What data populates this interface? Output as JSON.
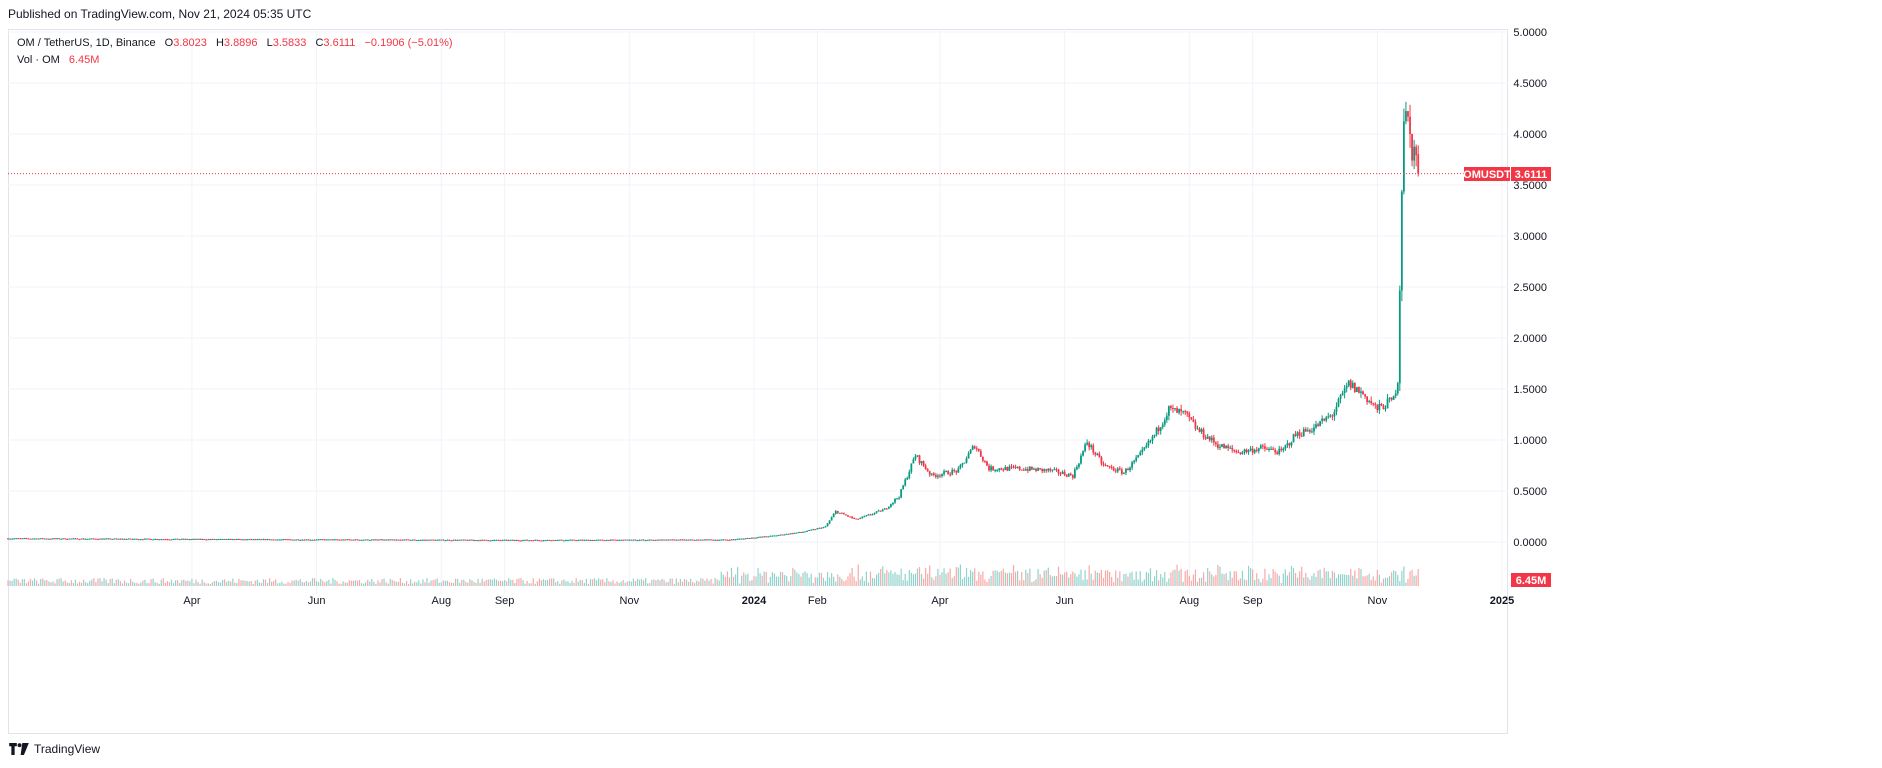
{
  "header": {
    "published": "Published on TradingView.com, Nov 21, 2024 05:35 UTC"
  },
  "legend": {
    "symbol": "OM / TetherUS, 1D, Binance",
    "open_label": "O",
    "open": "3.8023",
    "high_label": "H",
    "high": "3.8896",
    "low_label": "L",
    "low": "3.5833",
    "close_label": "C",
    "close": "3.6111",
    "change": "−0.1906 (−5.01%)",
    "volume_label": "Vol · OM",
    "volume": "6.45M"
  },
  "price_badge": {
    "ticker": "OMUSDT",
    "price": "3.6111"
  },
  "volume_badge": "6.45M",
  "footer": {
    "brand": "TradingView"
  },
  "colors": {
    "up": "#089981",
    "down": "#f23645",
    "grid": "#f0f3fa",
    "up_vol": "#92d2cc",
    "down_vol": "#f7a9a7"
  },
  "chart_data": {
    "type": "candlestick",
    "symbol": "OMUSDT",
    "ylim": [
      -0.4,
      5.0
    ],
    "y_ticks": [
      "5.0000",
      "4.5000",
      "4.0000",
      "3.5000",
      "3.0000",
      "2.5000",
      "2.0000",
      "1.5000",
      "1.0000",
      "0.5000",
      "0.0000"
    ],
    "x_ticks": [
      "Apr",
      "Jun",
      "Aug",
      "Sep",
      "Nov",
      "2024",
      "Feb",
      "Apr",
      "Jun",
      "Aug",
      "Sep",
      "Nov",
      "2025"
    ],
    "last_price": 3.6111,
    "last_volume": "6.45M",
    "price_path": [
      [
        "2023-01-01",
        0.035
      ],
      [
        "2023-03-01",
        0.03
      ],
      [
        "2023-05-01",
        0.025
      ],
      [
        "2023-07-01",
        0.022
      ],
      [
        "2023-09-01",
        0.018
      ],
      [
        "2023-11-01",
        0.02
      ],
      [
        "2023-12-20",
        0.022
      ],
      [
        "2024-01-10",
        0.06
      ],
      [
        "2024-01-25",
        0.1
      ],
      [
        "2024-02-05",
        0.15
      ],
      [
        "2024-02-10",
        0.3
      ],
      [
        "2024-02-20",
        0.22
      ],
      [
        "2024-03-05",
        0.32
      ],
      [
        "2024-03-12",
        0.45
      ],
      [
        "2024-03-20",
        0.85
      ],
      [
        "2024-03-28",
        0.65
      ],
      [
        "2024-04-10",
        0.7
      ],
      [
        "2024-04-18",
        0.95
      ],
      [
        "2024-04-25",
        0.72
      ],
      [
        "2024-05-10",
        0.72
      ],
      [
        "2024-05-25",
        0.7
      ],
      [
        "2024-06-05",
        0.65
      ],
      [
        "2024-06-12",
        0.98
      ],
      [
        "2024-06-20",
        0.75
      ],
      [
        "2024-06-30",
        0.68
      ],
      [
        "2024-07-08",
        0.85
      ],
      [
        "2024-07-15",
        1.05
      ],
      [
        "2024-07-22",
        1.3
      ],
      [
        "2024-07-30",
        1.25
      ],
      [
        "2024-08-05",
        1.1
      ],
      [
        "2024-08-15",
        0.95
      ],
      [
        "2024-08-25",
        0.88
      ],
      [
        "2024-09-05",
        0.92
      ],
      [
        "2024-09-15",
        0.88
      ],
      [
        "2024-09-22",
        1.05
      ],
      [
        "2024-10-01",
        1.12
      ],
      [
        "2024-10-10",
        1.25
      ],
      [
        "2024-10-18",
        1.55
      ],
      [
        "2024-10-25",
        1.45
      ],
      [
        "2024-11-01",
        1.3
      ],
      [
        "2024-11-05",
        1.35
      ],
      [
        "2024-11-09",
        1.4
      ],
      [
        "2024-11-11",
        1.6
      ],
      [
        "2024-11-12",
        2.5
      ],
      [
        "2024-11-13",
        3.5
      ],
      [
        "2024-11-14",
        4.2
      ],
      [
        "2024-11-16",
        4.1
      ],
      [
        "2024-11-18",
        3.85
      ],
      [
        "2024-11-20",
        3.8023
      ],
      [
        "2024-11-21",
        3.6111
      ]
    ]
  }
}
